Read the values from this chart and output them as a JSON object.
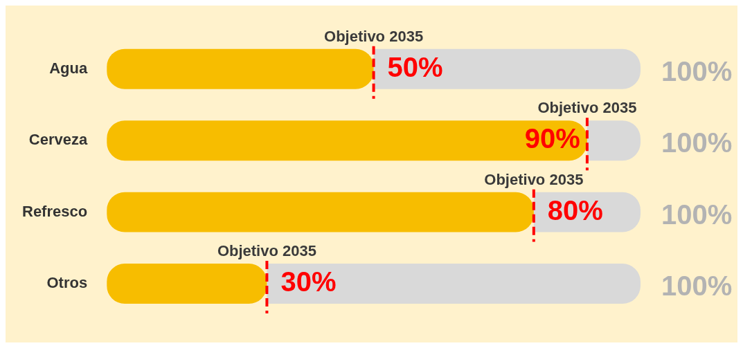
{
  "chart_data": {
    "type": "bar",
    "orientation": "horizontal",
    "stacked": true,
    "categories": [
      "Agua",
      "Cerveza",
      "Refresco",
      "Otros"
    ],
    "series": [
      {
        "color": "#f7bd00",
        "values": [
          50,
          90,
          80,
          30
        ],
        "value_labels": [
          "50%",
          "90%",
          "80%",
          "30%"
        ]
      },
      {
        "color": "#d9d9d9",
        "values": [
          50,
          10,
          20,
          70
        ]
      }
    ],
    "totals": [
      "100%",
      "100%",
      "100%",
      "100%"
    ],
    "xlim": [
      0,
      100
    ],
    "tick_labels": "y",
    "legend": false,
    "annotations": [
      {
        "text": "Objetivo 2035",
        "x": 50,
        "y": "Agua"
      },
      {
        "text": "Objetivo 2035",
        "x": 90,
        "y": "Cerveza"
      },
      {
        "text": "Objetivo 2035",
        "x": 80,
        "y": "Refresco"
      },
      {
        "text": "Objetivo 2035",
        "x": 30,
        "y": "Otros"
      }
    ]
  }
}
